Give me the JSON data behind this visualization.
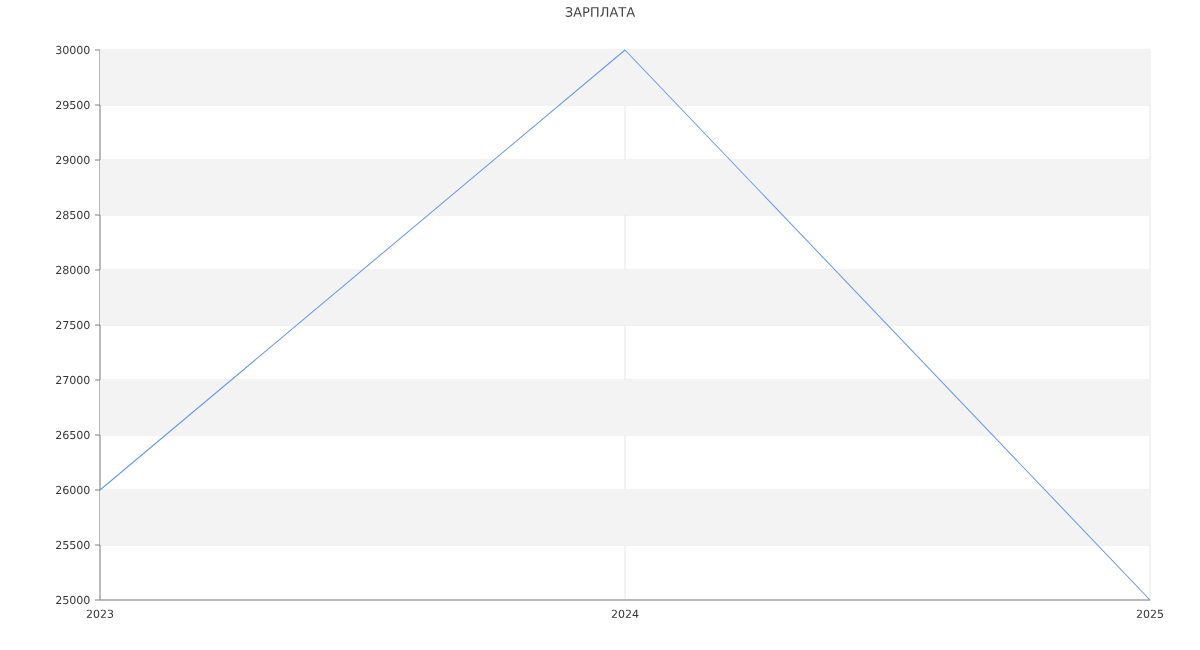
{
  "chart_data": {
    "type": "line",
    "title": "ЗАРПЛАТА",
    "x": [
      2023,
      2024,
      2025
    ],
    "values": [
      26000,
      30000,
      25000
    ],
    "color": "#6495ed",
    "xlim": [
      2023,
      2025
    ],
    "ylim": [
      25000,
      30000
    ],
    "xticks": [
      2023,
      2024,
      2025
    ],
    "yticks": [
      25000,
      25500,
      26000,
      26500,
      27000,
      27500,
      28000,
      28500,
      29000,
      29500,
      30000
    ],
    "grid": true,
    "bands": [
      {
        "axis": "y",
        "from": 25500,
        "to": 26000,
        "color": "#f3f3f3"
      },
      {
        "axis": "y",
        "from": 26500,
        "to": 27000,
        "color": "#f3f3f3"
      },
      {
        "axis": "y",
        "from": 27500,
        "to": 28000,
        "color": "#f3f3f3"
      },
      {
        "axis": "y",
        "from": 28500,
        "to": 29000,
        "color": "#f3f3f3"
      },
      {
        "axis": "y",
        "from": 29500,
        "to": 30000,
        "color": "#f3f3f3"
      }
    ]
  }
}
